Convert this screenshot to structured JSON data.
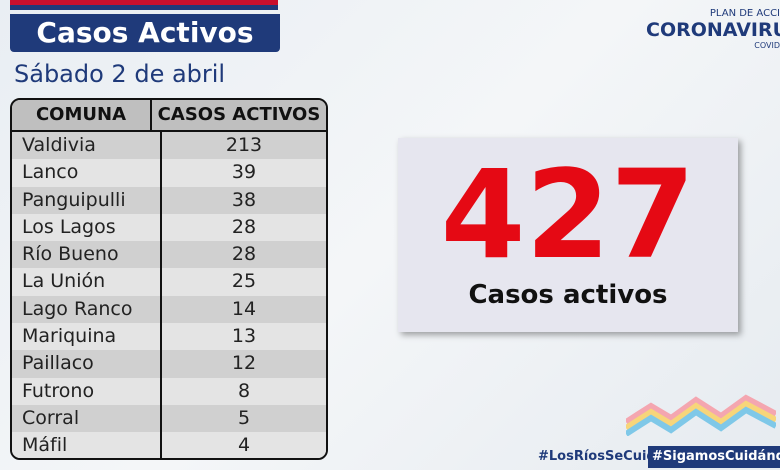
{
  "header": {
    "title": "Casos Activos",
    "subtitle": "Sábado 2 de abril"
  },
  "logo": {
    "top": "PLAN DE ACCI",
    "main": "CORONAVIRU",
    "sub": "COVID"
  },
  "table": {
    "columns": [
      "COMUNA",
      "CASOS ACTIVOS"
    ],
    "rows": [
      [
        "Valdivia",
        213
      ],
      [
        "Lanco",
        39
      ],
      [
        "Panguipulli",
        38
      ],
      [
        "Los Lagos",
        28
      ],
      [
        "Río Bueno",
        28
      ],
      [
        "La Unión",
        25
      ],
      [
        "Lago Ranco",
        14
      ],
      [
        "Mariquina",
        13
      ],
      [
        "Paillaco",
        12
      ],
      [
        "Futrono",
        8
      ],
      [
        "Corral",
        5
      ],
      [
        "Máfil",
        4
      ]
    ]
  },
  "total": {
    "value": 427,
    "label": "Casos activos"
  },
  "hashtags": [
    "#LosRíosSeCuida",
    "#SigamosCuidándon"
  ]
}
